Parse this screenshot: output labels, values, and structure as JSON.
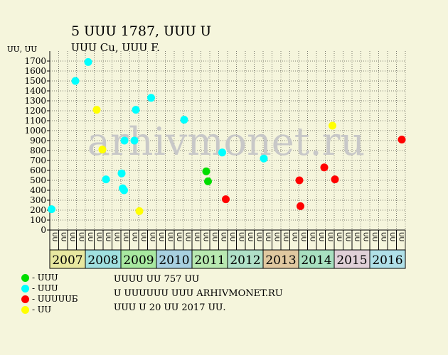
{
  "header": {
    "title": "5 ՍՍՍ 1787, ՍՍՍ Ս",
    "subtitle": "ՍՍՍ Cu, ՍՍՍ F.",
    "y_unit": "ՍՍ, ՍՍ"
  },
  "watermark": "arhivmonet.ru",
  "legend": [
    {
      "label": "- ՍՍՍ",
      "color": "#00dd00"
    },
    {
      "label": "- ՍՍՍ",
      "color": "#00ffff"
    },
    {
      "label": "- ՍՍՍՍՍБ",
      "color": "#ff0000"
    },
    {
      "label": "- ՍՍ",
      "color": "#ffff00"
    }
  ],
  "notes": [
    "ՍՍՍՍ ՍՍ 757 ՍՍ",
    "Ս ՍՍՍՍՍՍ ՍՍՍ ARHIVMONET.RU",
    "ՍՍՍ Ս 20 ՍՍ 2017 ՍՍ."
  ],
  "colors": {
    "background": "#f5f5dc",
    "grid": "#000000",
    "watermark": "#c8c8c8"
  },
  "chart_data": {
    "type": "scatter",
    "ylim": [
      0,
      1700
    ],
    "yticks": [
      0,
      100,
      200,
      300,
      400,
      500,
      600,
      700,
      800,
      900,
      1000,
      1100,
      1200,
      1300,
      1400,
      1500,
      1600,
      1700
    ],
    "grid": true,
    "legend_position": "bottom-left",
    "quarter_labels": [
      "ՍՍ",
      "ՍՍ",
      "ՍՍ",
      "ՍՍ"
    ],
    "years": [
      {
        "label": "2007",
        "color": "#e8e8a0"
      },
      {
        "label": "2008",
        "color": "#a0e0e0"
      },
      {
        "label": "2009",
        "color": "#a8e8a0"
      },
      {
        "label": "2010",
        "color": "#a8d0e0"
      },
      {
        "label": "2011",
        "color": "#b8e8b0"
      },
      {
        "label": "2012",
        "color": "#b0e0c8"
      },
      {
        "label": "2013",
        "color": "#e0c8a0"
      },
      {
        "label": "2014",
        "color": "#a8e0c0"
      },
      {
        "label": "2015",
        "color": "#e0d0d8"
      },
      {
        "label": "2016",
        "color": "#b0e0e8"
      }
    ],
    "series": [
      {
        "color": "#00dd00",
        "points": [
          {
            "x": 4.4,
            "y": 590
          },
          {
            "x": 4.45,
            "y": 490
          }
        ]
      },
      {
        "color": "#00ffff",
        "points": [
          {
            "x": 0.05,
            "y": 210
          },
          {
            "x": 0.72,
            "y": 1500
          },
          {
            "x": 1.08,
            "y": 1690
          },
          {
            "x": 1.58,
            "y": 510
          },
          {
            "x": 2.02,
            "y": 570
          },
          {
            "x": 2.05,
            "y": 420
          },
          {
            "x": 2.09,
            "y": 400
          },
          {
            "x": 2.1,
            "y": 900
          },
          {
            "x": 2.38,
            "y": 900
          },
          {
            "x": 2.42,
            "y": 1210
          },
          {
            "x": 2.85,
            "y": 1330
          },
          {
            "x": 3.78,
            "y": 1110
          },
          {
            "x": 4.85,
            "y": 780
          },
          {
            "x": 6.02,
            "y": 720
          }
        ]
      },
      {
        "color": "#ff0000",
        "points": [
          {
            "x": 4.95,
            "y": 310
          },
          {
            "x": 7.02,
            "y": 500
          },
          {
            "x": 7.05,
            "y": 240
          },
          {
            "x": 7.72,
            "y": 630
          },
          {
            "x": 8.02,
            "y": 510
          },
          {
            "x": 9.9,
            "y": 910
          }
        ]
      },
      {
        "color": "#ffff00",
        "points": [
          {
            "x": 1.32,
            "y": 1210
          },
          {
            "x": 1.48,
            "y": 810
          },
          {
            "x": 2.52,
            "y": 190
          },
          {
            "x": 7.95,
            "y": 1050
          }
        ]
      }
    ]
  }
}
